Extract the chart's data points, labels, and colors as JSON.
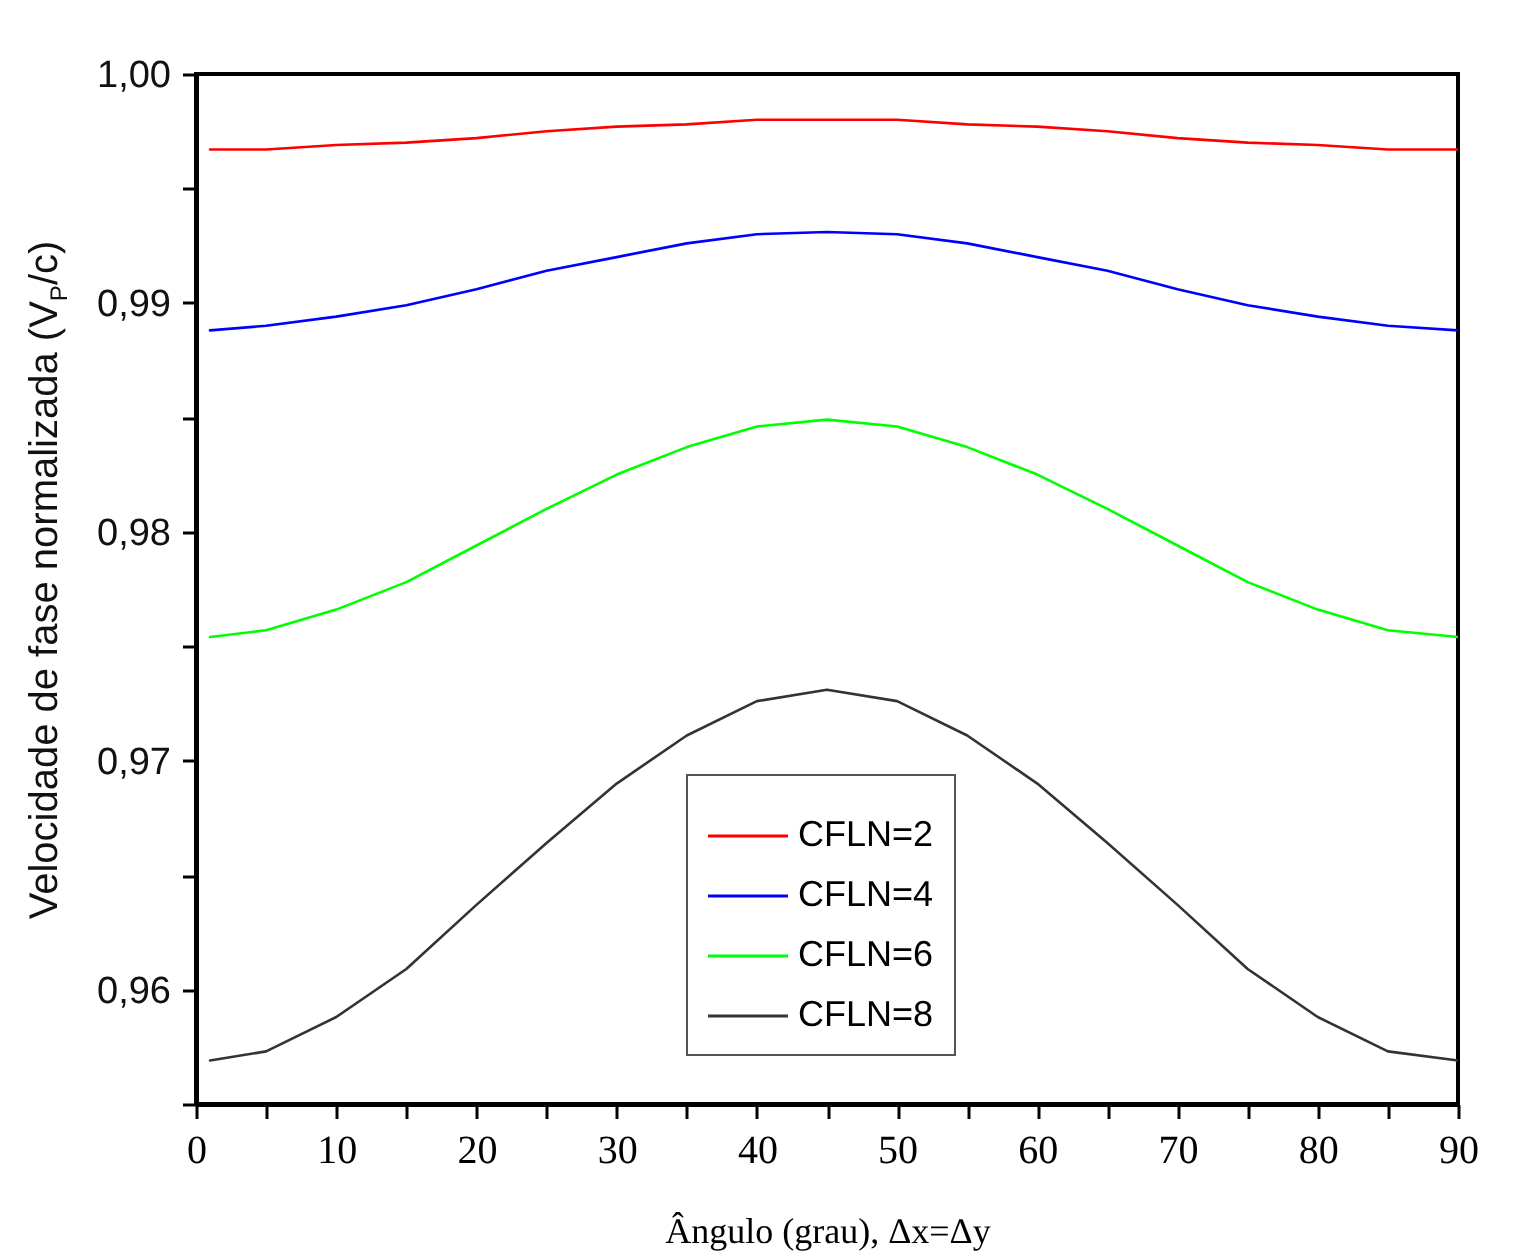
{
  "chart_data": {
    "type": "line",
    "xlabel": "Ângulo (grau), Δx=Δy",
    "ylabel": "Velocidade de fase normalizada (V$_{P}$/c)",
    "x": [
      1,
      5,
      10,
      15,
      20,
      25,
      30,
      35,
      40,
      45,
      50,
      55,
      60,
      65,
      70,
      75,
      80,
      85,
      90
    ],
    "series": [
      {
        "name": "CFLN=2",
        "color": "#ff0000",
        "values": [
          0.9967,
          0.9967,
          0.9969,
          0.997,
          0.9972,
          0.9975,
          0.9977,
          0.9978,
          0.998,
          0.998,
          0.998,
          0.9978,
          0.9977,
          0.9975,
          0.9972,
          0.997,
          0.9969,
          0.9967,
          0.9967
        ]
      },
      {
        "name": "CFLN=4",
        "color": "#0000ff",
        "values": [
          0.9888,
          0.989,
          0.9894,
          0.9899,
          0.9906,
          0.9914,
          0.992,
          0.9926,
          0.993,
          0.9931,
          0.993,
          0.9926,
          0.992,
          0.9914,
          0.9906,
          0.9899,
          0.9894,
          0.989,
          0.9888
        ]
      },
      {
        "name": "CFLN=6",
        "color": "#00ff00",
        "values": [
          0.9754,
          0.9757,
          0.9766,
          0.9778,
          0.9794,
          0.981,
          0.9825,
          0.9837,
          0.9846,
          0.9849,
          0.9846,
          0.9837,
          0.9825,
          0.981,
          0.9794,
          0.9778,
          0.9766,
          0.9757,
          0.9754
        ]
      },
      {
        "name": "CFLN=8",
        "color": "#333333",
        "values": [
          0.9569,
          0.9573,
          0.9588,
          0.9609,
          0.9637,
          0.9664,
          0.969,
          0.9711,
          0.9726,
          0.9731,
          0.9726,
          0.9711,
          0.969,
          0.9664,
          0.9637,
          0.9609,
          0.9588,
          0.9573,
          0.9569
        ]
      }
    ],
    "xlim": [
      0,
      90
    ],
    "xticks": [
      0,
      {
        "value": 5,
        "label": null
      },
      10,
      {
        "value": 15,
        "label": null
      },
      20,
      {
        "value": 25,
        "label": null
      },
      30,
      {
        "value": 35,
        "label": null
      },
      40,
      {
        "value": 45,
        "label": null
      },
      50,
      {
        "value": 55,
        "label": null
      },
      60,
      {
        "value": 65,
        "label": null
      },
      70,
      {
        "value": 75,
        "label": null
      },
      80,
      {
        "value": 85,
        "label": null
      },
      90
    ],
    "ylim": [
      0.955,
      1.0
    ],
    "yticks": [
      {
        "value": 0.955,
        "label": null
      },
      {
        "value": 0.96,
        "label": "0,96"
      },
      {
        "value": 0.965,
        "label": null
      },
      {
        "value": 0.97,
        "label": "0,97"
      },
      {
        "value": 0.975,
        "label": null
      },
      {
        "value": 0.98,
        "label": "0,98"
      },
      {
        "value": 0.985,
        "label": null
      },
      {
        "value": 0.99,
        "label": "0,99"
      },
      {
        "value": 0.995,
        "label": null
      },
      {
        "value": 1.0,
        "label": "1,00"
      }
    ],
    "grid": false,
    "legend": "bottom"
  }
}
